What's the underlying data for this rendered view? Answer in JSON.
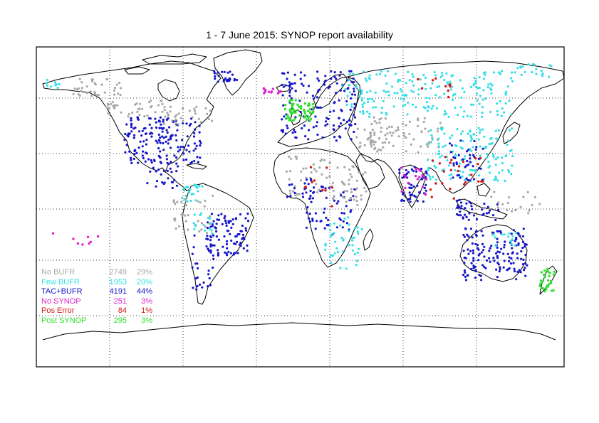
{
  "title": "1 - 7 June 2015: SYNOP report availability",
  "legend": [
    {
      "label": "No BUFR",
      "count": "2749",
      "percent": "29%",
      "color": "#a8a8a8"
    },
    {
      "label": "Few BUFR",
      "count": "1953",
      "percent": "20%",
      "color": "#33e0e6"
    },
    {
      "label": "TAC+BUFR",
      "count": "4191",
      "percent": "44%",
      "color": "#1515c8"
    },
    {
      "label": "No SYNOP",
      "count": "251",
      "percent": "3%",
      "color": "#e020d0"
    },
    {
      "label": "Pos Error",
      "count": "84",
      "percent": "1%",
      "color": "#d81818"
    },
    {
      "label": "Post SYNOP",
      "count": "295",
      "percent": "3%",
      "color": "#30e030"
    }
  ],
  "map_style": {
    "background": "#ffffff",
    "coastline_color": "#000000",
    "grid": "dotted",
    "projection": "equirectangular"
  }
}
